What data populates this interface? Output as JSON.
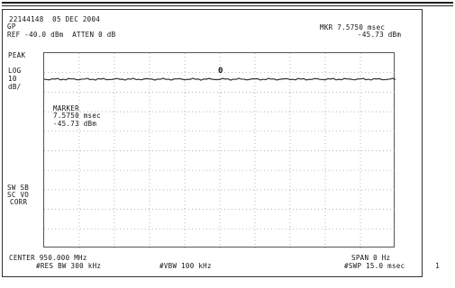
{
  "header": {
    "id_date": "22144148  05 DEC 2004",
    "mode": "GP",
    "ref_line": "REF -40.0 dBm  ATTEN 0 dB",
    "marker_top_1": "MKR 7.5750 msec",
    "marker_top_2": "-45.73 dBm"
  },
  "left_panel": {
    "scale_1": "PEAK",
    "scale_2": "LOG",
    "scale_3": "10",
    "scale_4": "dB/",
    "sweep_1": "SW SB",
    "sweep_2": "SC VO",
    "sweep_3": "CORR"
  },
  "marker_box": {
    "title": "MARKER",
    "time": "7.5750 msec",
    "level": "-45.73 dBm",
    "symbol": "0"
  },
  "footer": {
    "center": "CENTER 950.000 MHz",
    "res_bw": "#RES BW 300 kHz",
    "vbw": "#VBW 100 kHz",
    "span": "SPAN 0 Hz",
    "sweep": "#SWP 15.0 msec"
  },
  "page_corner": "1",
  "colors": {
    "trace": "#333333",
    "grid": "#9a9a9a",
    "frame": "#333333"
  }
}
